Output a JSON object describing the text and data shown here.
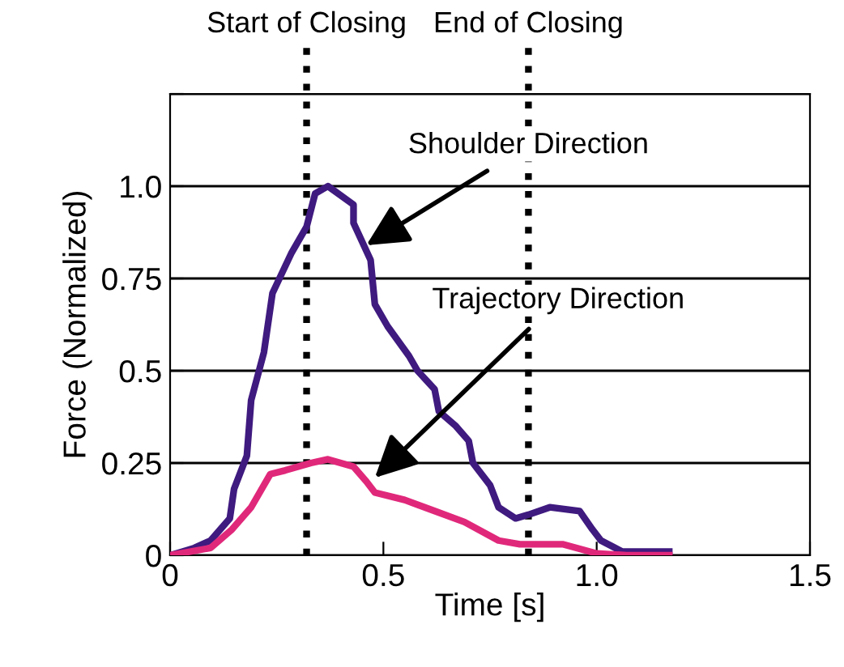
{
  "chart_data": {
    "type": "line",
    "xlabel": "Time [s]",
    "ylabel": "Force (Normalized)",
    "xlim": [
      0,
      1.5
    ],
    "xticks": [
      0,
      0.5,
      {
        "value": 1.0,
        "label": "1.0"
      },
      1.5
    ],
    "ylim": [
      0,
      1.25
    ],
    "yticks": [
      0,
      0.25,
      0.5,
      0.75,
      {
        "value": 1.0,
        "label": "1.0"
      },
      {
        "value": 1.25,
        "label": null
      }
    ],
    "grid": "y",
    "legend": false,
    "marker": "none",
    "line_style": "solid",
    "series": [
      {
        "color": "#3f1a7f",
        "x": [
          0,
          0.057,
          0.095,
          0.14,
          0.15,
          0.18,
          0.19,
          0.22,
          0.24,
          0.285,
          0.32,
          0.34,
          0.37,
          0.43,
          0.43,
          0.47,
          0.48,
          0.51,
          0.56,
          0.58,
          0.62,
          0.63,
          0.67,
          0.7,
          0.71,
          0.75,
          0.77,
          0.81,
          0.84,
          0.89,
          0.96,
          0.99,
          1.01,
          1.06,
          1.17
        ],
        "values": [
          0,
          0.02,
          0.04,
          0.1,
          0.18,
          0.27,
          0.42,
          0.55,
          0.71,
          0.82,
          0.89,
          0.98,
          1.0,
          0.95,
          0.9,
          0.8,
          0.68,
          0.62,
          0.54,
          0.5,
          0.45,
          0.39,
          0.35,
          0.31,
          0.25,
          0.19,
          0.13,
          0.1,
          0.11,
          0.13,
          0.12,
          0.07,
          0.04,
          0.01,
          0.01
        ]
      },
      {
        "color": "#e0287a",
        "x": [
          0,
          0.095,
          0.145,
          0.19,
          0.235,
          0.27,
          0.33,
          0.37,
          0.43,
          0.46,
          0.48,
          0.55,
          0.62,
          0.69,
          0.77,
          0.82,
          0.92,
          1.0,
          1.07,
          1.17
        ],
        "values": [
          0,
          0.02,
          0.07,
          0.13,
          0.22,
          0.23,
          0.25,
          0.26,
          0.24,
          0.2,
          0.17,
          0.15,
          0.12,
          0.09,
          0.04,
          0.03,
          0.03,
          0.005,
          0,
          0
        ]
      }
    ],
    "ref_lines": [
      {
        "axis": "x",
        "value": 0.32,
        "label": "Start of Closing",
        "color": "#000000",
        "line_style": "dotted"
      },
      {
        "axis": "x",
        "value": 0.84,
        "label": "End of Closing",
        "color": "#000000",
        "line_style": "dotted"
      }
    ],
    "annotations": [
      {
        "text": "Shoulder Direction",
        "x": 0.46,
        "y": 0.84
      },
      {
        "text": "Trajectory Direction",
        "x": 0.48,
        "y": 0.21
      }
    ]
  }
}
